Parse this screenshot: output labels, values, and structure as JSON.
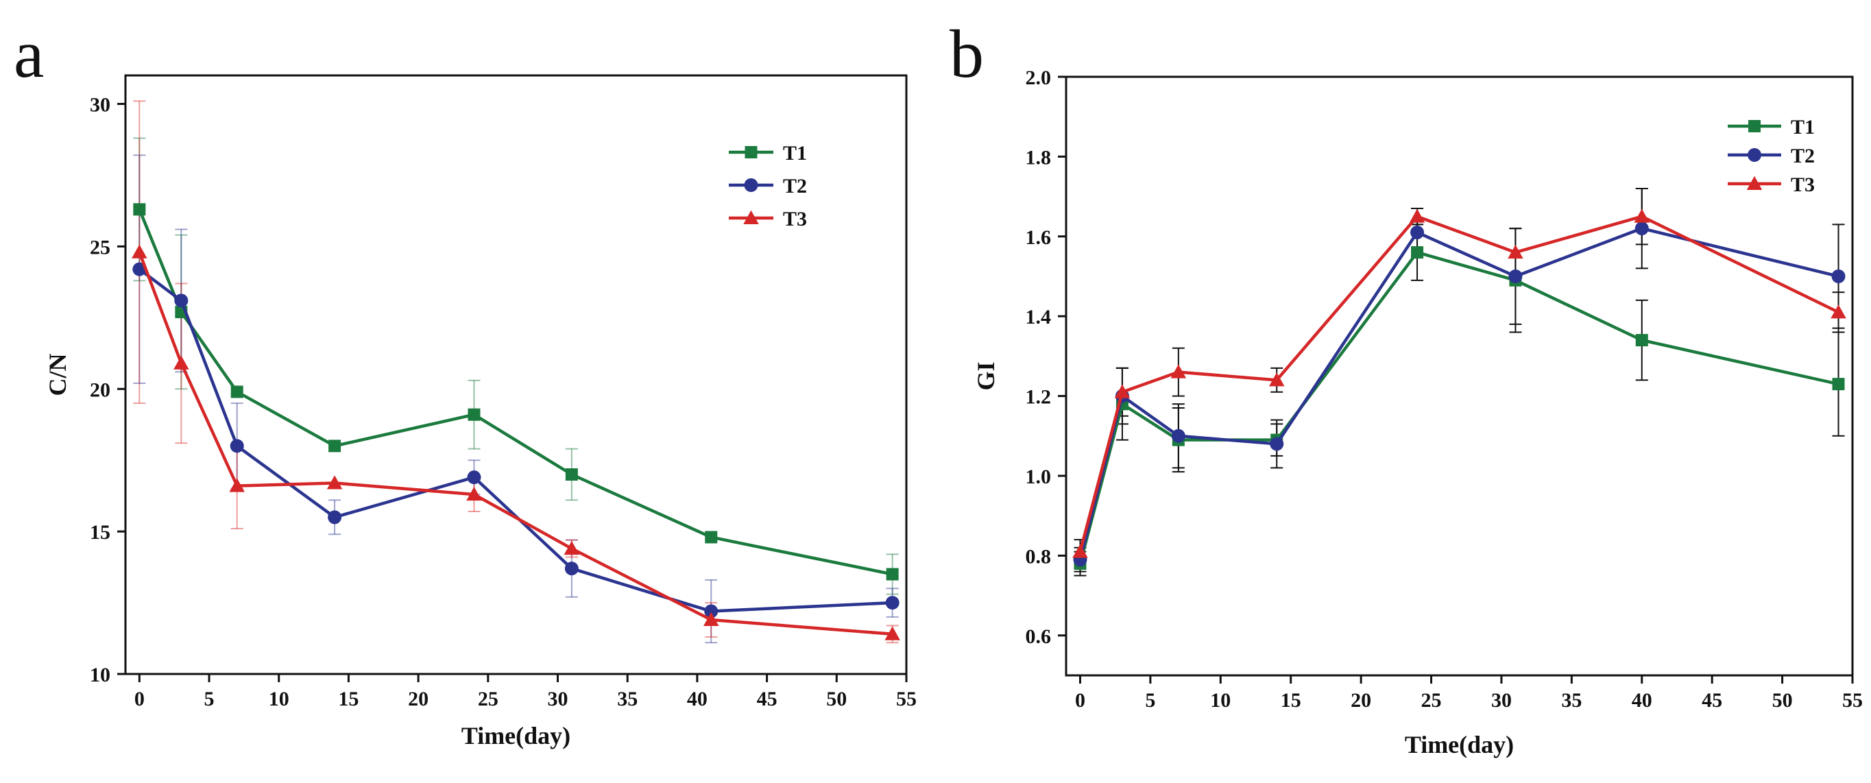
{
  "chart_data": [
    {
      "type": "line",
      "panel_label": "a",
      "xlabel": "Time(day)",
      "ylabel": "C/N",
      "xlim": [
        -1,
        55
      ],
      "ylim": [
        10,
        31
      ],
      "xticks": [
        0,
        5,
        10,
        15,
        20,
        25,
        30,
        35,
        40,
        45,
        50,
        55
      ],
      "yticks": [
        10,
        15,
        20,
        25,
        30
      ],
      "legend_position": "top-right",
      "error_bar_style": "faded",
      "x": [
        0,
        3,
        7,
        14,
        24,
        31,
        41,
        54
      ],
      "series": [
        {
          "name": "T1",
          "color": "#1b7a3e",
          "marker": "square",
          "values": [
            26.3,
            22.7,
            19.9,
            18.0,
            19.1,
            17.0,
            14.8,
            13.5
          ],
          "errors": [
            2.5,
            2.7,
            0.0,
            0.0,
            1.2,
            0.9,
            0.0,
            0.7
          ]
        },
        {
          "name": "T2",
          "color": "#2b3590",
          "marker": "circle",
          "values": [
            24.2,
            23.1,
            18.0,
            15.5,
            16.9,
            13.7,
            12.2,
            12.5
          ],
          "errors": [
            4.0,
            2.5,
            1.5,
            0.6,
            0.6,
            1.0,
            1.1,
            0.5
          ]
        },
        {
          "name": "T3",
          "color": "#d62728",
          "marker": "triangle",
          "values": [
            24.8,
            20.9,
            16.6,
            16.7,
            16.3,
            14.4,
            11.9,
            11.4
          ],
          "errors": [
            5.3,
            2.8,
            1.5,
            0.0,
            0.6,
            0.3,
            0.6,
            0.3
          ]
        }
      ]
    },
    {
      "type": "line",
      "panel_label": "b",
      "xlabel": "Time(day)",
      "ylabel": "GI",
      "xlim": [
        -1,
        55
      ],
      "ylim": [
        0.5,
        2.0
      ],
      "xticks": [
        0,
        5,
        10,
        15,
        20,
        25,
        30,
        35,
        40,
        45,
        50,
        55
      ],
      "yticks": [
        0.6,
        0.8,
        1.0,
        1.2,
        1.4,
        1.6,
        1.8,
        2.0
      ],
      "legend_position": "top-right",
      "error_bar_style": "solid",
      "x": [
        0,
        3,
        7,
        14,
        24,
        31,
        40,
        54
      ],
      "series": [
        {
          "name": "T1",
          "color": "#1b7a3e",
          "marker": "square",
          "values": [
            0.78,
            1.18,
            1.09,
            1.09,
            1.56,
            1.49,
            1.34,
            1.23
          ],
          "errors": [
            0.03,
            0.09,
            0.08,
            0.04,
            0.07,
            0.13,
            0.1,
            0.13
          ]
        },
        {
          "name": "T2",
          "color": "#2b3590",
          "marker": "circle",
          "values": [
            0.79,
            1.2,
            1.1,
            1.08,
            1.61,
            1.5,
            1.62,
            1.5
          ],
          "errors": [
            0.03,
            0.07,
            0.08,
            0.06,
            0.06,
            0.12,
            0.1,
            0.13
          ]
        },
        {
          "name": "T3",
          "color": "#d62728",
          "marker": "triangle",
          "values": [
            0.81,
            1.21,
            1.26,
            1.24,
            1.65,
            1.56,
            1.65,
            1.41
          ],
          "errors": [
            0.03,
            0.06,
            0.06,
            0.03,
            0.02,
            0.06,
            0.07,
            0.05
          ]
        }
      ]
    }
  ]
}
